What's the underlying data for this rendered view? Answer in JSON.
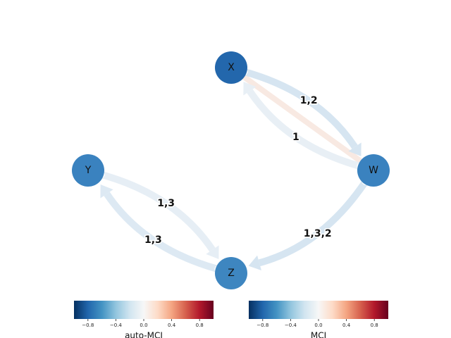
{
  "nodes": [
    {
      "label": "X",
      "color": "#2367ac"
    },
    {
      "label": "Y",
      "color": "#3a82bf"
    },
    {
      "label": "W",
      "color": "#3a82bf"
    },
    {
      "label": "Z",
      "color": "#3e86c0"
    }
  ],
  "edges": [
    {
      "from": "X",
      "to": "W",
      "label": "1,2",
      "color": "#d6e5f1"
    },
    {
      "from": "W",
      "to": "X",
      "label": "1",
      "color": "#e8eff5"
    },
    {
      "from": "Y",
      "to": "Z",
      "label": "1,3",
      "color": "#e6eef5"
    },
    {
      "from": "Z",
      "to": "Y",
      "label": "1,3",
      "color": "#dde9f3"
    },
    {
      "from": "W",
      "to": "Z",
      "label": "1,3,2",
      "color": "#d6e5f1"
    }
  ],
  "contemporaneous_links": [
    {
      "from": "X",
      "to": "W",
      "color": "#f8e9e2"
    }
  ],
  "colorbars": [
    {
      "label": "auto-MCI",
      "lim": [
        -1,
        1
      ],
      "ticks": [
        {
          "value": -0.8,
          "label": "−0.8"
        },
        {
          "value": -0.4,
          "label": "−0.4"
        },
        {
          "value": 0,
          "label": "0.0"
        },
        0.4,
        0.8
      ]
    },
    {
      "label": "MCI",
      "lim": [
        -1,
        1
      ],
      "ticks": [
        {
          "value": -0.8,
          "label": "−0.8"
        },
        {
          "value": -0.4,
          "label": "−0.4"
        },
        {
          "value": 0,
          "label": "0.0"
        },
        0.4,
        0.8
      ]
    }
  ]
}
